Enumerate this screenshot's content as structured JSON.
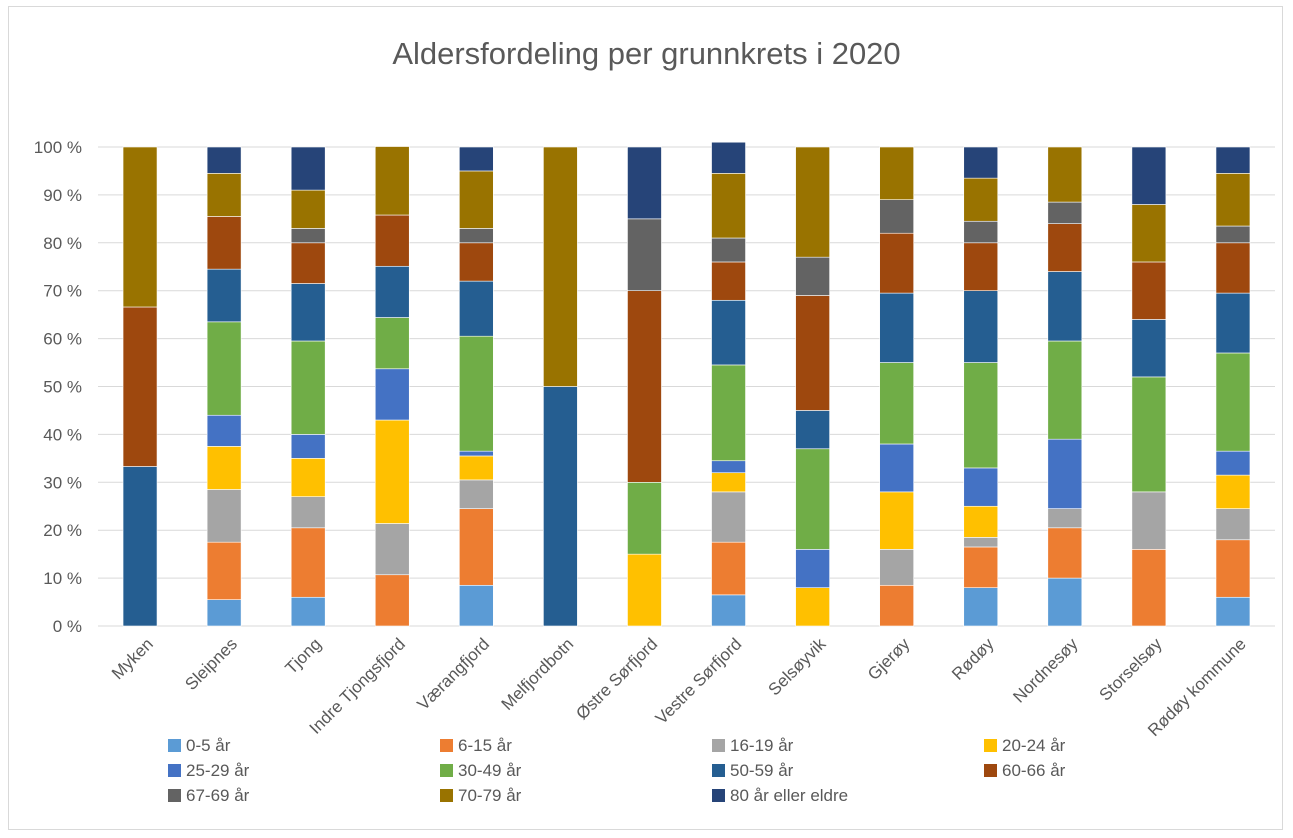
{
  "chart_data": {
    "type": "bar",
    "stacked": true,
    "title": "Aldersfordeling  per grunnkrets i 2020",
    "xlabel": "",
    "ylabel": "",
    "ylim": [
      0,
      100
    ],
    "yticks": [
      "0 %",
      "10 %",
      "20 %",
      "30 %",
      "40 %",
      "50 %",
      "60 %",
      "70 %",
      "80 %",
      "90 %",
      "100 %"
    ],
    "grid": true,
    "legend_position": "bottom",
    "categories": [
      "Myken",
      "Sleipnes",
      "Tjong",
      "Indre Tjongsfjord",
      "Værangfjord",
      "Melfjordbotn",
      "Østre Sørfjord",
      "Vestre Sørfjord",
      "Selsøyvik",
      "Gjerøy",
      "Rødøy",
      "Nordnesøy",
      "Storselsøy",
      "Rødøy kommune"
    ],
    "series": [
      {
        "name": "0-5 år",
        "color": "#5b9bd5",
        "values": [
          0,
          5.5,
          6,
          0,
          8.5,
          0,
          0,
          6.5,
          0,
          0,
          8,
          10,
          0,
          6
        ]
      },
      {
        "name": "6-15 år",
        "color": "#ed7d31",
        "values": [
          0,
          12,
          14.5,
          10.7,
          16,
          0,
          0,
          11,
          0,
          8.5,
          8.5,
          10.5,
          16,
          12
        ]
      },
      {
        "name": "16-19 år",
        "color": "#a5a5a5",
        "values": [
          0,
          11,
          6.5,
          10.7,
          6,
          0,
          0,
          10.5,
          0,
          7.5,
          2,
          4,
          12,
          6.5
        ]
      },
      {
        "name": "20-24 år",
        "color": "#ffc000",
        "values": [
          0,
          9,
          8,
          21.6,
          5,
          0,
          15,
          4,
          8,
          12,
          6.5,
          0,
          0,
          7
        ]
      },
      {
        "name": "25-29 år",
        "color": "#4472c4",
        "values": [
          0,
          6.5,
          5,
          10.7,
          1,
          0,
          0,
          2.5,
          8,
          10,
          8,
          14.5,
          0,
          5
        ]
      },
      {
        "name": "30-49 år",
        "color": "#70ad47",
        "values": [
          0,
          19.5,
          19.5,
          10.7,
          24,
          0,
          15,
          20,
          21,
          17,
          22,
          20.5,
          24,
          20.5
        ]
      },
      {
        "name": "50-59 år",
        "color": "#255e91",
        "values": [
          33.3,
          11,
          12,
          10.7,
          11.5,
          50,
          0,
          13.5,
          8,
          14.5,
          15,
          14.5,
          12,
          12.5
        ]
      },
      {
        "name": "60-66 år",
        "color": "#9e480e",
        "values": [
          33.3,
          11,
          8.5,
          10.7,
          8,
          0,
          40,
          8,
          24,
          12.5,
          10,
          10,
          12,
          10.5
        ]
      },
      {
        "name": "67-69 år",
        "color": "#636363",
        "values": [
          0,
          0,
          3,
          0,
          3,
          0,
          15,
          5,
          8,
          7,
          4.5,
          4.5,
          0,
          3.5
        ]
      },
      {
        "name": "70-79 år",
        "color": "#997300",
        "values": [
          33.4,
          9,
          8,
          14.3,
          12,
          50,
          0,
          13.5,
          23,
          11,
          9,
          11.5,
          12,
          11
        ]
      },
      {
        "name": "80 år eller eldre",
        "color": "#264478",
        "values": [
          0,
          5.5,
          9,
          0,
          5,
          0,
          15,
          6.5,
          0,
          0,
          6.5,
          0,
          12,
          5.5
        ]
      }
    ]
  }
}
